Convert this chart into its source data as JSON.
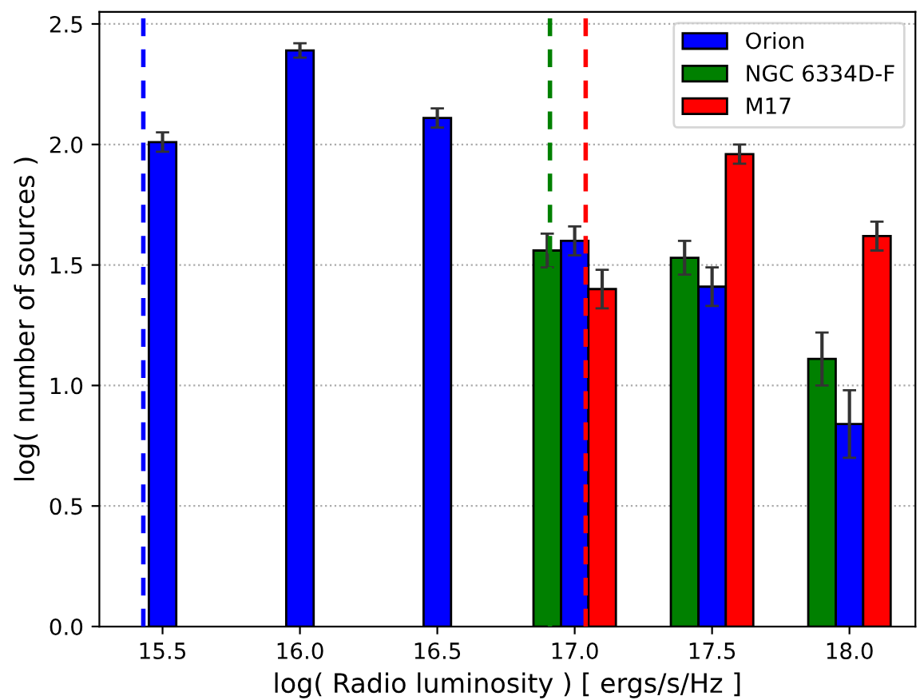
{
  "chart_data": {
    "type": "bar",
    "xlabel": "log( Radio luminosity ) [ ergs/s/Hz ]",
    "ylabel": "log( number of sources )",
    "xlim": [
      15.27,
      18.24
    ],
    "xticks": [
      {
        "value": 15.5,
        "label": "15.5"
      },
      {
        "value": 16.0,
        "label": "16.0"
      },
      {
        "value": 16.5,
        "label": "16.5"
      },
      {
        "value": 17.0,
        "label": "17.0"
      },
      {
        "value": 17.5,
        "label": "17.5"
      },
      {
        "value": 18.0,
        "label": "18.0"
      }
    ],
    "ylim": [
      0,
      2.55
    ],
    "yticks": [
      {
        "value": 0,
        "label": "0.0"
      },
      {
        "value": 0.5,
        "label": "0.5"
      },
      {
        "value": 1.0,
        "label": "1.0"
      },
      {
        "value": 1.5,
        "label": "1.5"
      },
      {
        "value": 2.0,
        "label": "2.0"
      },
      {
        "value": 2.5,
        "label": "2.5"
      }
    ],
    "grid": "y",
    "legend": "top right",
    "series": [
      {
        "name": "Orion",
        "color": "#0000ff",
        "x": [
          15.5,
          16.0,
          16.5,
          17.0,
          17.5,
          18.0
        ],
        "values": [
          2.01,
          2.39,
          2.11,
          1.6,
          1.41,
          0.84
        ],
        "errors": [
          0.04,
          0.03,
          0.04,
          0.06,
          0.08,
          0.14
        ]
      },
      {
        "name": "NGC 6334D-F",
        "color": "#008000",
        "x": [
          16.9,
          17.4,
          17.9
        ],
        "values": [
          1.56,
          1.53,
          1.11
        ],
        "errors": [
          0.07,
          0.07,
          0.11
        ]
      },
      {
        "name": "M17",
        "color": "#ff0000",
        "x": [
          17.1,
          17.6,
          18.1
        ],
        "values": [
          1.4,
          1.96,
          1.62
        ],
        "errors": [
          0.08,
          0.04,
          0.06
        ]
      }
    ],
    "ref_lines": [
      {
        "axis": "x",
        "value": 15.43,
        "color": "#0000ff",
        "line_style": "dashed"
      },
      {
        "axis": "x",
        "value": 16.91,
        "color": "#008000",
        "line_style": "dashed"
      },
      {
        "axis": "x",
        "value": 17.04,
        "color": "#ff0000",
        "line_style": "dashed"
      }
    ]
  }
}
